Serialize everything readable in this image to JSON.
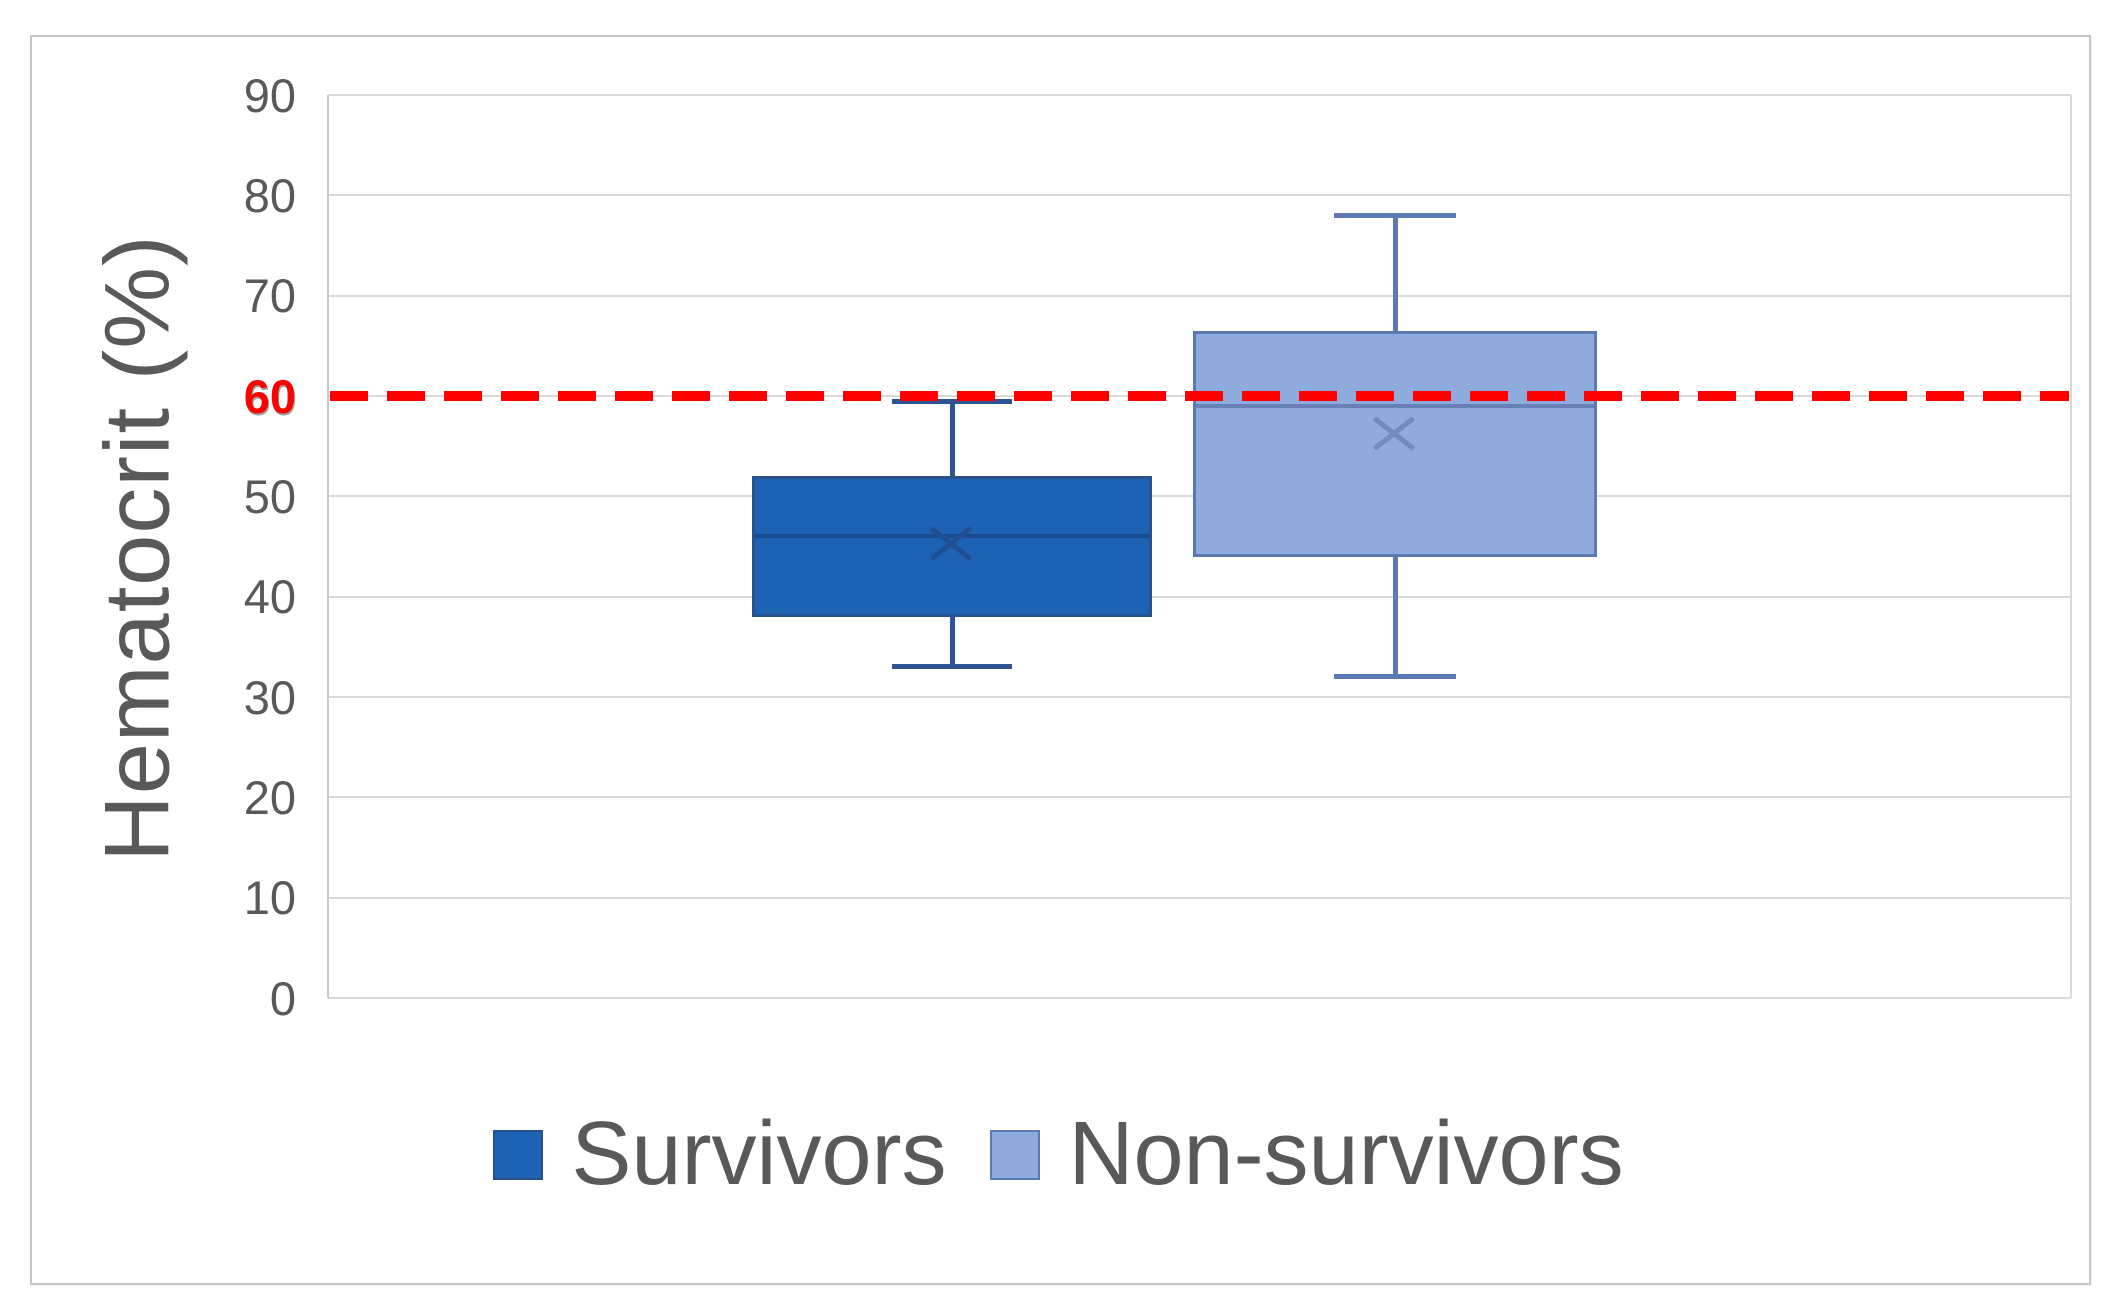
{
  "chart_data": {
    "type": "boxplot",
    "title": "",
    "ylabel": "Hematocrit (%)",
    "xlabel": "",
    "ylim": [
      0,
      90
    ],
    "yticks": [
      90,
      80,
      70,
      60,
      50,
      40,
      30,
      20,
      10,
      0
    ],
    "grid": true,
    "legend_position": "bottom",
    "highlight_tick": {
      "value": 60,
      "label": "60",
      "color": "#FE0000"
    },
    "reference_line": {
      "value": 60,
      "style": "dashed",
      "color": "#FE0000"
    },
    "series": [
      {
        "name": "Survivors",
        "min": 33,
        "q1": 38,
        "median": 46,
        "mean": 45.5,
        "q3": 52,
        "max": 59.5,
        "fill": "#1E62B4",
        "border": "#27508F",
        "whisker": "#2D5493",
        "median_color": "#1A4C8C",
        "mean_color": "#1C4F93"
      },
      {
        "name": "Non-survivors",
        "min": 32,
        "q1": 44,
        "median": 59,
        "mean": 56.5,
        "q3": 66.5,
        "max": 78,
        "fill": "#8FAADC",
        "border": "#5D79B4",
        "whisker": "#5D79B4",
        "median_color": "#6781B7",
        "mean_color": "#7489BF"
      }
    ],
    "colors": {
      "text": "#595959",
      "gridline": "#D9D9D9",
      "axis_line": "#C9C9C9",
      "reference": "#FE0000"
    }
  }
}
